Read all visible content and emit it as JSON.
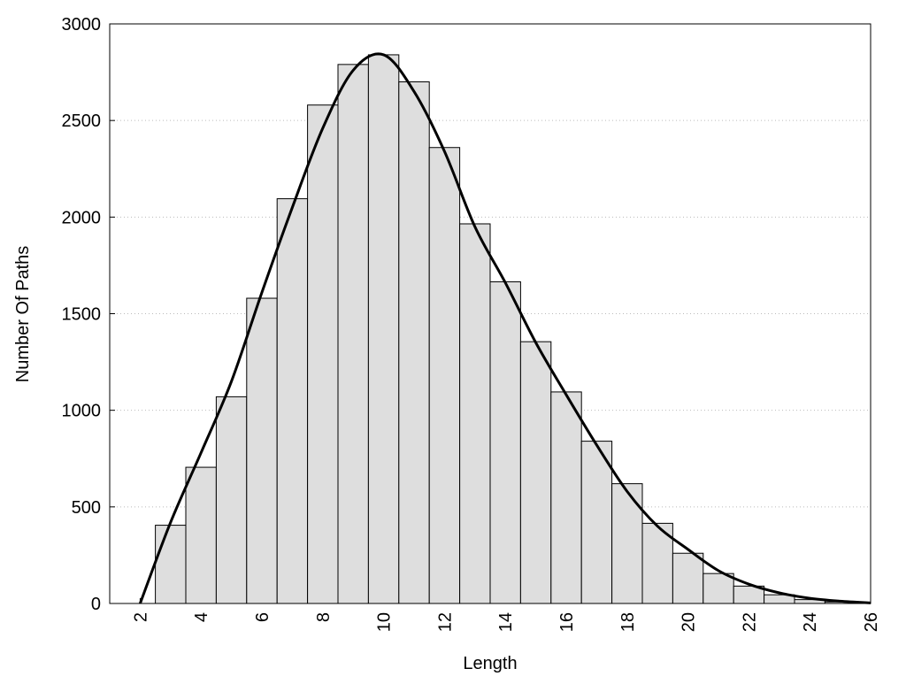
{
  "chart_data": {
    "type": "histogram",
    "xlabel": "Length",
    "ylabel": "Number Of Paths",
    "bins": [
      2.5,
      3.5,
      4.5,
      5.5,
      6.5,
      7.5,
      8.5,
      9.5,
      10.5,
      11.5,
      12.5,
      13.5,
      14.5,
      15.5,
      16.5,
      17.5,
      18.5,
      19.5,
      20.5,
      21.5,
      22.5,
      23.5,
      24.5,
      25.5
    ],
    "values": [
      405,
      705,
      1070,
      1580,
      2095,
      2580,
      2790,
      2840,
      2700,
      2360,
      1965,
      1665,
      1355,
      1095,
      840,
      620,
      415,
      260,
      155,
      90,
      45,
      20,
      8
    ],
    "color": "#dedede",
    "curve": {
      "type": "line",
      "color": "#000000",
      "x": [
        2,
        3,
        4,
        5,
        6,
        7,
        8,
        9,
        10,
        11,
        12,
        13,
        14,
        15,
        16,
        17,
        18,
        19,
        20,
        21,
        22,
        23,
        24,
        25,
        26
      ],
      "values": [
        0,
        420,
        780,
        1150,
        1610,
        2050,
        2460,
        2760,
        2840,
        2650,
        2340,
        1950,
        1660,
        1350,
        1080,
        820,
        580,
        400,
        280,
        170,
        100,
        55,
        27,
        12,
        3
      ]
    },
    "xlim": [
      1,
      26
    ],
    "ylim": [
      0,
      3000
    ],
    "xticks": [
      2,
      4,
      6,
      8,
      10,
      12,
      14,
      16,
      18,
      20,
      22,
      24,
      26
    ],
    "yticks": [
      0,
      500,
      1000,
      1500,
      2000,
      2500,
      3000
    ],
    "grid": true
  }
}
